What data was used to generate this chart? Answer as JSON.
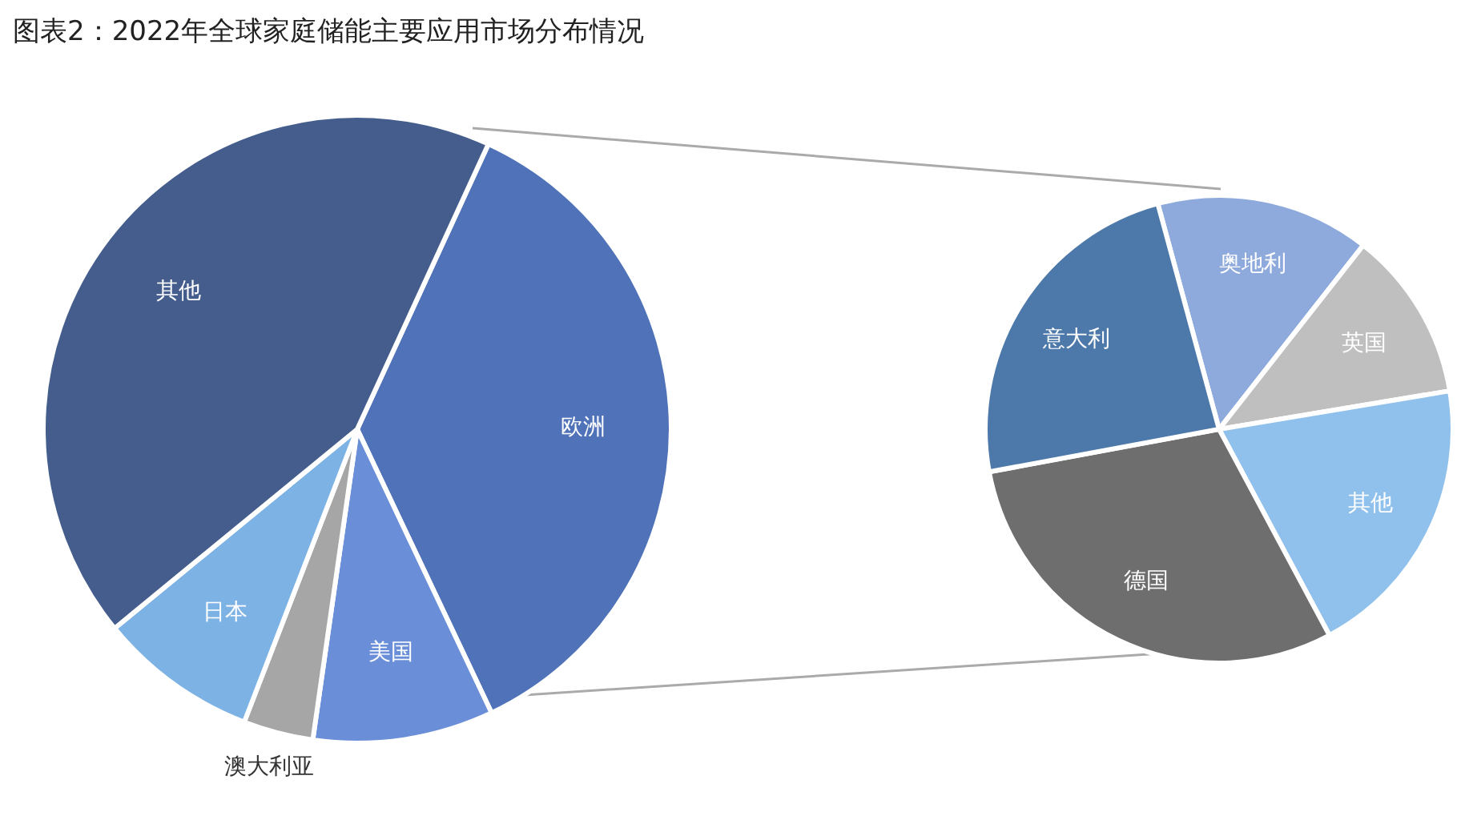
{
  "chart_data": [
    {
      "type": "pie",
      "title": "图表2：2022年全球家庭储能主要应用市场分布情况",
      "categories": [
        "欧洲",
        "美国",
        "澳大利亚",
        "日本",
        "其他"
      ],
      "values": [
        36.1,
        9.3,
        3.6,
        8.2,
        42.8
      ],
      "colors": [
        "#4f72b8",
        "#6a8fd8",
        "#a6a6a6",
        "#7db2e5",
        "#445d8c"
      ]
    },
    {
      "type": "pie",
      "categories": [
        "奥地利",
        "英国",
        "其他",
        "德国",
        "意大利"
      ],
      "values": [
        14.8,
        11.8,
        19.8,
        29.9,
        23.7
      ],
      "colors": [
        "#8eaadc",
        "#bfbfbf",
        "#8fc1ec",
        "#6e6e6e",
        "#4d79aa"
      ]
    }
  ]
}
